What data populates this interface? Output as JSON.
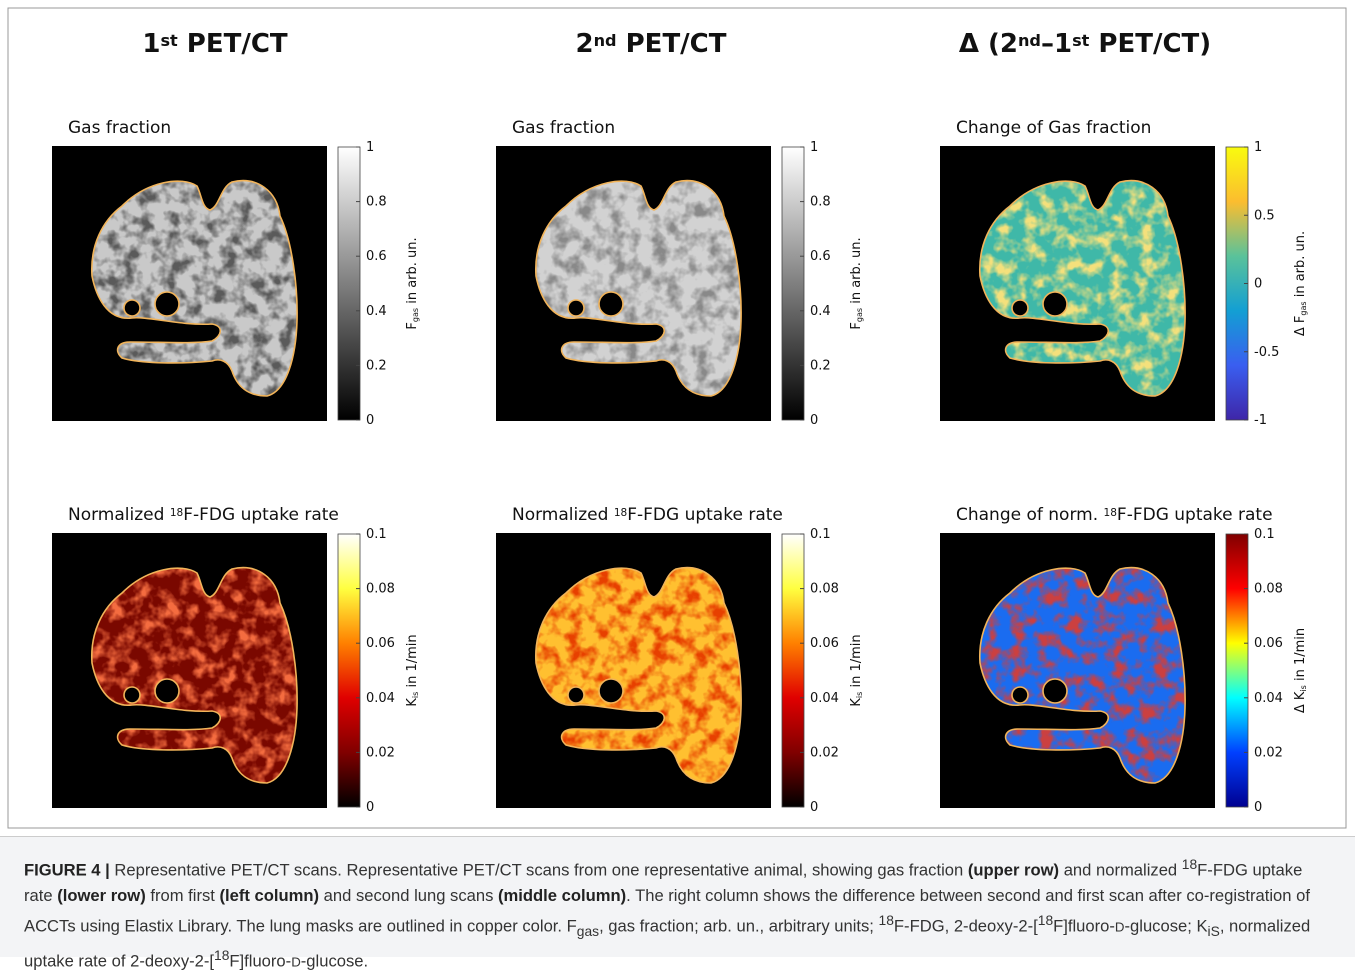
{
  "headers": [
    [
      "1",
      "st",
      " PET/CT"
    ],
    [
      "2",
      "nd",
      " PET/CT"
    ],
    [
      "Δ (2",
      "nd",
      "–1",
      "st",
      " PET/CT)"
    ]
  ],
  "panels": [
    {
      "title": [
        "Gas fraction"
      ],
      "colorbar": {
        "ticks": [
          1,
          0.8,
          0.6,
          0.4,
          0.2,
          0
        ],
        "label": [
          "F",
          "gas",
          " in arb. un."
        ]
      }
    },
    {
      "title": [
        "Gas fraction"
      ],
      "colorbar": {
        "ticks": [
          1,
          0.8,
          0.6,
          0.4,
          0.2,
          0
        ],
        "label": [
          "F",
          "gas",
          " in arb. un."
        ]
      }
    },
    {
      "title": [
        "Change of Gas fraction"
      ],
      "colorbar": {
        "ticks": [
          1,
          0.5,
          0,
          -0.5,
          -1
        ],
        "label": [
          "Δ F",
          "gas",
          " in arb. un."
        ]
      }
    },
    {
      "title": [
        "Normalized ",
        "18",
        "F-FDG uptake rate"
      ],
      "colorbar": {
        "ticks": [
          0.1,
          0.08,
          0.06,
          0.04,
          0.02,
          0
        ],
        "label": [
          "K",
          "is",
          " in 1/min"
        ]
      }
    },
    {
      "title": [
        "Normalized ",
        "18",
        "F-FDG uptake rate"
      ],
      "colorbar": {
        "ticks": [
          0.1,
          0.08,
          0.06,
          0.04,
          0.02,
          0
        ],
        "label": [
          "K",
          "is",
          " in 1/min"
        ]
      }
    },
    {
      "title": [
        "Change of norm. ",
        "18",
        "F-FDG uptake rate"
      ],
      "colorbar": {
        "ticks": [
          0.1,
          0.08,
          0.06,
          0.04,
          0.02,
          0
        ],
        "label": [
          "Δ K",
          "is",
          " in 1/min"
        ]
      }
    }
  ],
  "caption": [
    "FIGURE 4 |",
    " Representative PET/CT scans. Representative PET/CT scans from one representative animal, showing gas fraction ",
    "(upper row)",
    " and normalized ",
    "18",
    "F-FDG uptake rate ",
    "(lower row)",
    " from first ",
    "(left column)",
    " and second lung scans ",
    "(middle column)",
    ". The right column shows the difference between second and first scan after co-registration of ACCTs using Elastix Library. The lung masks are outlined in copper color. F",
    "gas",
    ", gas fraction; arb. un., arbitrary units; ",
    "18",
    "F-FDG, 2-deoxy-2-[",
    "18",
    "F]fluoro-",
    "D",
    "-glucose; K",
    "iS",
    ", normalized uptake rate of 2-deoxy-2-[",
    "18",
    "F]fluoro-",
    "D",
    "-glucose."
  ]
}
